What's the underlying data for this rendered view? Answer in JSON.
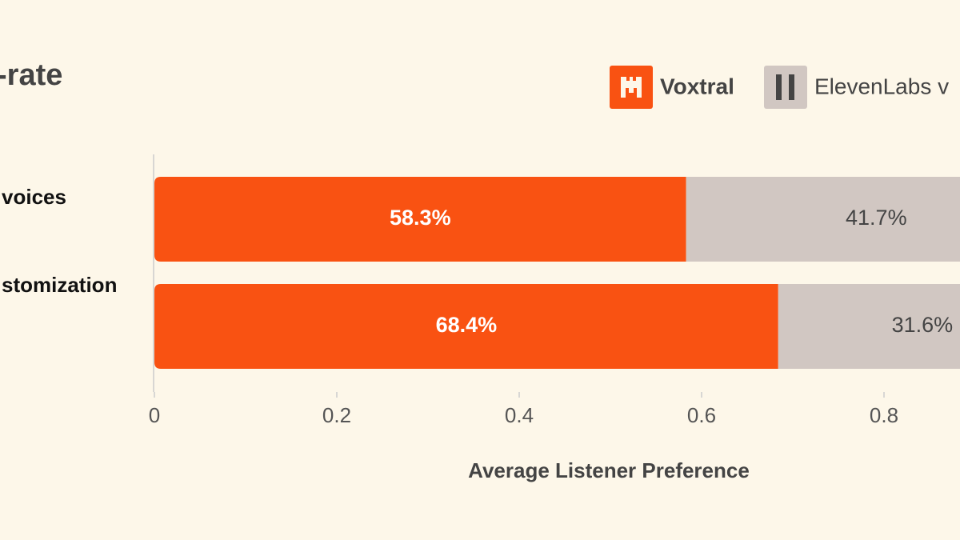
{
  "chart_data": {
    "type": "stacked-barh",
    "title": "-rate",
    "categories": [
      "voices",
      "stomization"
    ],
    "series": [
      {
        "name": "Voxtral",
        "color": "#f95212",
        "values": [
          0.583,
          0.684
        ],
        "value_labels": [
          "58.3%",
          "68.4%"
        ]
      },
      {
        "name": "ElevenLabs v",
        "color": "#d1c7c2",
        "values": [
          0.417,
          0.316
        ],
        "value_labels": [
          "41.7%",
          "31.6%"
        ]
      }
    ],
    "xlabel": "Average Listener Preference",
    "xlim": [
      0,
      1
    ],
    "xticks": [
      0,
      0.2,
      0.4,
      0.6,
      0.8
    ]
  }
}
